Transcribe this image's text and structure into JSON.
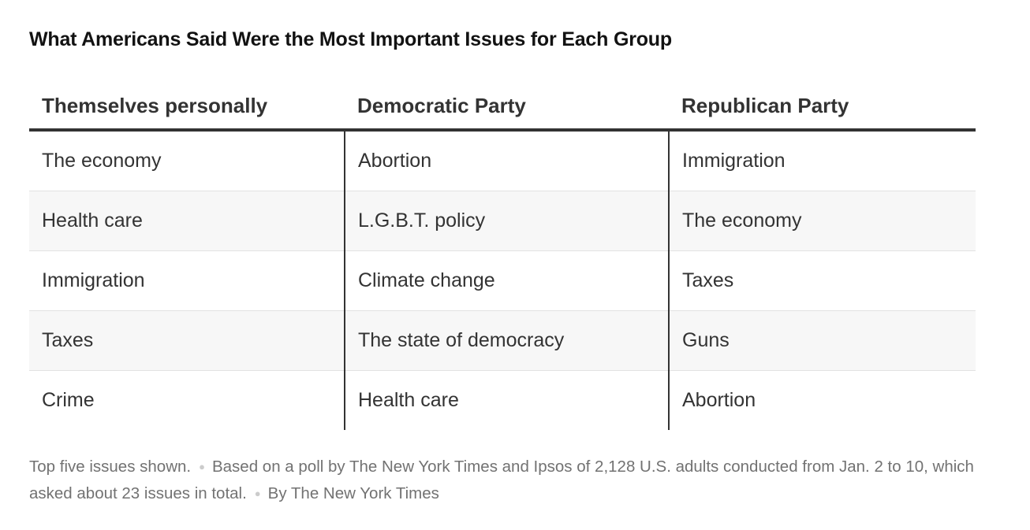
{
  "chart_data": {
    "type": "table",
    "title": "What Americans Said Were the Most Important Issues for Each Group",
    "columns": [
      "Themselves personally",
      "Democratic Party",
      "Republican Party"
    ],
    "rows": [
      [
        "The economy",
        "Abortion",
        "Immigration"
      ],
      [
        "Health care",
        "L.G.B.T. policy",
        "The economy"
      ],
      [
        "Immigration",
        "Climate change",
        "Taxes"
      ],
      [
        "Taxes",
        "The state of democracy",
        "Guns"
      ],
      [
        "Crime",
        "Health care",
        "Abortion"
      ]
    ],
    "notes": [
      "Top five issues shown.",
      "Based on a poll by The New York Times and Ipsos of 2,128 U.S. adults conducted from Jan. 2 to 10, which asked about 23 issues in total.",
      "By The New York Times"
    ]
  },
  "colors": {
    "text": "#333333",
    "title": "#121212",
    "note": "#727272",
    "row_alt_background": "#f7f7f7",
    "rule": "#333333",
    "row_separator": "#e2e2e2"
  }
}
